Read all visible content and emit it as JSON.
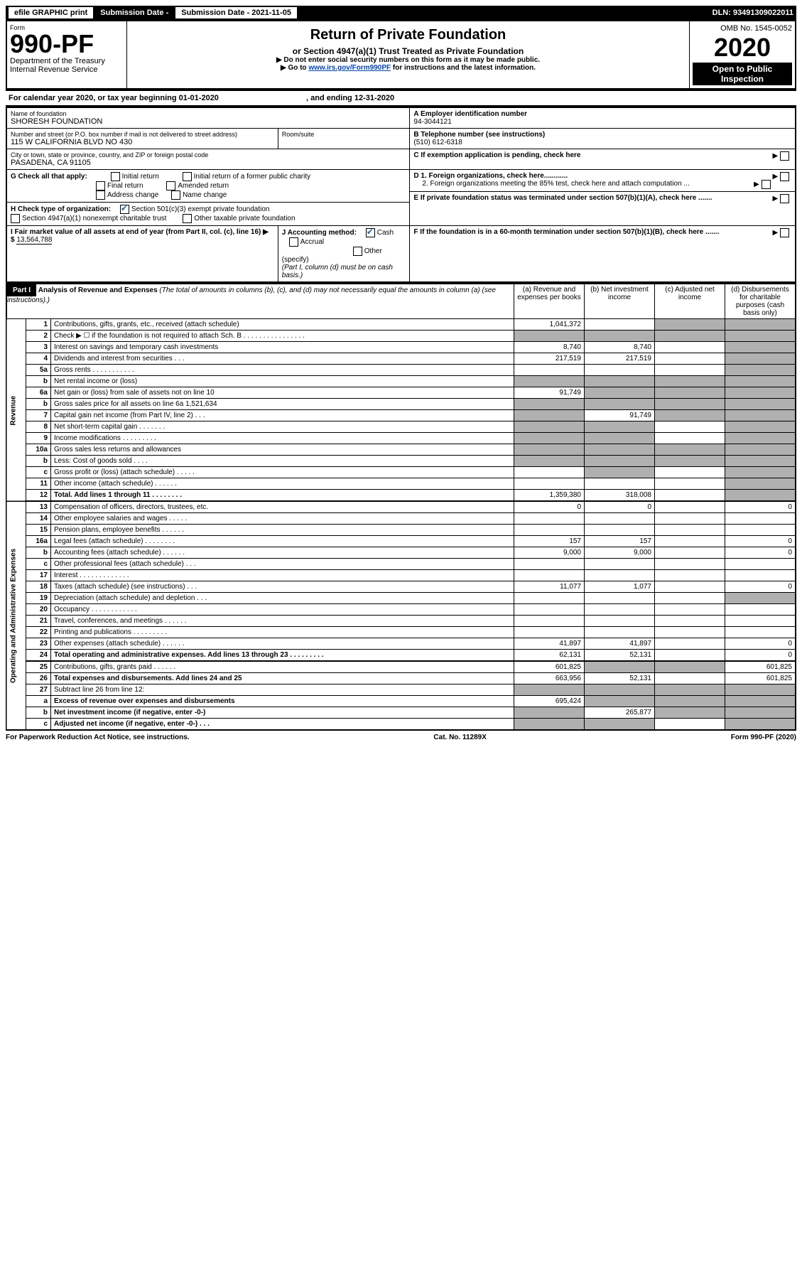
{
  "top_bar": {
    "efile": "efile GRAPHIC print",
    "submission_label": "Submission Date - 2021-11-05",
    "dln": "DLN: 93491309022011"
  },
  "header": {
    "form_label": "Form",
    "form_number": "990-PF",
    "dept": "Department of the Treasury",
    "irs": "Internal Revenue Service",
    "title": "Return of Private Foundation",
    "subtitle": "or Section 4947(a)(1) Trust Treated as Private Foundation",
    "note1": "▶ Do not enter social security numbers on this form as it may be made public.",
    "note2_prefix": "▶ Go to ",
    "note2_link": "www.irs.gov/Form990PF",
    "note2_suffix": " for instructions and the latest information.",
    "omb": "OMB No. 1545-0052",
    "year": "2020",
    "open": "Open to Public Inspection"
  },
  "cal_year": {
    "prefix": "For calendar year 2020, or tax year beginning ",
    "begin": "01-01-2020",
    "middle": " , and ending ",
    "end": "12-31-2020"
  },
  "info": {
    "name_label": "Name of foundation",
    "name": "SHORESH FOUNDATION",
    "ein_label": "A Employer identification number",
    "ein": "94-3044121",
    "addr_label": "Number and street (or P.O. box number if mail is not delivered to street address)",
    "addr": "115 W CALIFORNIA BLVD NO 430",
    "room_label": "Room/suite",
    "tel_label": "B Telephone number (see instructions)",
    "tel": "(510) 612-6318",
    "city_label": "City or town, state or province, country, and ZIP or foreign postal code",
    "city": "PASADENA, CA  91105",
    "c_label": "C If exemption application is pending, check here",
    "g_label": "G Check all that apply:",
    "g_initial": "Initial return",
    "g_initial_former": "Initial return of a former public charity",
    "g_final": "Final return",
    "g_amended": "Amended return",
    "g_addr": "Address change",
    "g_name": "Name change",
    "d1": "D 1. Foreign organizations, check here............",
    "d2": "2. Foreign organizations meeting the 85% test, check here and attach computation ...",
    "h_label": "H Check type of organization:",
    "h_501c3": "Section 501(c)(3) exempt private foundation",
    "h_4947": "Section 4947(a)(1) nonexempt charitable trust",
    "h_other": "Other taxable private foundation",
    "e_label": "E If private foundation status was terminated under section 507(b)(1)(A), check here .......",
    "i_label": "I Fair market value of all assets at end of year (from Part II, col. (c), line 16) ▶ $",
    "i_val": "13,564,788",
    "j_label": "J Accounting method:",
    "j_cash": "Cash",
    "j_accrual": "Accrual",
    "j_other": "Other (specify)",
    "j_note": "(Part I, column (d) must be on cash basis.)",
    "f_label": "F If the foundation is in a 60-month termination under section 507(b)(1)(B), check here ......."
  },
  "part1": {
    "label": "Part I",
    "title": "Analysis of Revenue and Expenses",
    "title_note": " (The total of amounts in columns (b), (c), and (d) may not necessarily equal the amounts in column (a) (see instructions).)",
    "col_a": "(a) Revenue and expenses per books",
    "col_b": "(b) Net investment income",
    "col_c": "(c) Adjusted net income",
    "col_d": "(d) Disbursements for charitable purposes (cash basis only)",
    "side_revenue": "Revenue",
    "side_expenses": "Operating and Administrative Expenses"
  },
  "rows": [
    {
      "n": "1",
      "d": "Contributions, gifts, grants, etc., received (attach schedule)",
      "a": "1,041,372",
      "b": "",
      "c": "shaded",
      "dd": "shaded"
    },
    {
      "n": "2",
      "d": "Check ▶ ☐ if the foundation is not required to attach Sch. B  .  .  .  .  .  .  .  .  .  .  .  .  .  .  .  .",
      "a": "shaded",
      "b": "shaded",
      "c": "shaded",
      "dd": "shaded"
    },
    {
      "n": "3",
      "d": "Interest on savings and temporary cash investments",
      "a": "8,740",
      "b": "8,740",
      "c": "",
      "dd": "shaded"
    },
    {
      "n": "4",
      "d": "Dividends and interest from securities  .   .   .",
      "a": "217,519",
      "b": "217,519",
      "c": "",
      "dd": "shaded"
    },
    {
      "n": "5a",
      "d": "Gross rents   .   .   .   .   .   .   .   .   .   .   .",
      "a": "",
      "b": "",
      "c": "",
      "dd": "shaded"
    },
    {
      "n": "b",
      "d": "Net rental income or (loss)",
      "a": "shaded",
      "b": "shaded",
      "c": "shaded",
      "dd": "shaded"
    },
    {
      "n": "6a",
      "d": "Net gain or (loss) from sale of assets not on line 10",
      "a": "91,749",
      "b": "shaded",
      "c": "shaded",
      "dd": "shaded"
    },
    {
      "n": "b",
      "d": "Gross sales price for all assets on line 6a          1,521,634",
      "a": "shaded",
      "b": "shaded",
      "c": "shaded",
      "dd": "shaded"
    },
    {
      "n": "7",
      "d": "Capital gain net income (from Part IV, line 2)  .   .   .",
      "a": "shaded",
      "b": "91,749",
      "c": "shaded",
      "dd": "shaded"
    },
    {
      "n": "8",
      "d": "Net short-term capital gain  .   .   .   .   .   .   .",
      "a": "shaded",
      "b": "shaded",
      "c": "",
      "dd": "shaded"
    },
    {
      "n": "9",
      "d": "Income modifications  .   .   .   .   .   .   .   .   .",
      "a": "shaded",
      "b": "shaded",
      "c": "",
      "dd": "shaded"
    },
    {
      "n": "10a",
      "d": "Gross sales less returns and allowances",
      "a": "shaded",
      "b": "shaded",
      "c": "shaded",
      "dd": "shaded"
    },
    {
      "n": "b",
      "d": "Less: Cost of goods sold   .   .   .   .",
      "a": "shaded",
      "b": "shaded",
      "c": "shaded",
      "dd": "shaded"
    },
    {
      "n": "c",
      "d": "Gross profit or (loss) (attach schedule)   .   .   .   .   .",
      "a": "",
      "b": "shaded",
      "c": "",
      "dd": "shaded"
    },
    {
      "n": "11",
      "d": "Other income (attach schedule)   .   .   .   .   .   .",
      "a": "",
      "b": "",
      "c": "",
      "dd": "shaded"
    },
    {
      "n": "12",
      "d": "Total. Add lines 1 through 11  .   .   .   .   .   .   .   .",
      "a": "1,359,380",
      "b": "318,008",
      "c": "",
      "dd": "shaded",
      "bold": true
    },
    {
      "n": "13",
      "d": "Compensation of officers, directors, trustees, etc.",
      "a": "0",
      "b": "0",
      "c": "",
      "dd": "0"
    },
    {
      "n": "14",
      "d": "Other employee salaries and wages   .   .   .   .   .",
      "a": "",
      "b": "",
      "c": "",
      "dd": ""
    },
    {
      "n": "15",
      "d": "Pension plans, employee benefits  .   .   .   .   .   .",
      "a": "",
      "b": "",
      "c": "",
      "dd": ""
    },
    {
      "n": "16a",
      "d": "Legal fees (attach schedule)  .   .   .   .   .   .   .   .",
      "a": "157",
      "b": "157",
      "c": "",
      "dd": "0"
    },
    {
      "n": "b",
      "d": "Accounting fees (attach schedule)  .   .   .   .   .   .",
      "a": "9,000",
      "b": "9,000",
      "c": "",
      "dd": "0"
    },
    {
      "n": "c",
      "d": "Other professional fees (attach schedule)   .   .   .",
      "a": "",
      "b": "",
      "c": "",
      "dd": ""
    },
    {
      "n": "17",
      "d": "Interest  .   .   .   .   .   .   .   .   .   .   .   .   .",
      "a": "",
      "b": "",
      "c": "",
      "dd": ""
    },
    {
      "n": "18",
      "d": "Taxes (attach schedule) (see instructions)   .   .   .",
      "a": "11,077",
      "b": "1,077",
      "c": "",
      "dd": "0"
    },
    {
      "n": "19",
      "d": "Depreciation (attach schedule) and depletion   .   .   .",
      "a": "",
      "b": "",
      "c": "",
      "dd": "shaded"
    },
    {
      "n": "20",
      "d": "Occupancy  .   .   .   .   .   .   .   .   .   .   .   .",
      "a": "",
      "b": "",
      "c": "",
      "dd": ""
    },
    {
      "n": "21",
      "d": "Travel, conferences, and meetings  .   .   .   .   .   .",
      "a": "",
      "b": "",
      "c": "",
      "dd": ""
    },
    {
      "n": "22",
      "d": "Printing and publications  .   .   .   .   .   .   .   .   .",
      "a": "",
      "b": "",
      "c": "",
      "dd": ""
    },
    {
      "n": "23",
      "d": "Other expenses (attach schedule)  .   .   .   .   .   .",
      "a": "41,897",
      "b": "41,897",
      "c": "",
      "dd": "0"
    },
    {
      "n": "24",
      "d": "Total operating and administrative expenses. Add lines 13 through 23  .   .   .   .   .   .   .   .   .",
      "a": "62,131",
      "b": "52,131",
      "c": "",
      "dd": "0",
      "bold": true
    },
    {
      "n": "25",
      "d": "Contributions, gifts, grants paid   .   .   .   .   .   .",
      "a": "601,825",
      "b": "shaded",
      "c": "shaded",
      "dd": "601,825"
    },
    {
      "n": "26",
      "d": "Total expenses and disbursements. Add lines 24 and 25",
      "a": "663,956",
      "b": "52,131",
      "c": "",
      "dd": "601,825",
      "bold": true
    },
    {
      "n": "27",
      "d": "Subtract line 26 from line 12:",
      "a": "shaded",
      "b": "shaded",
      "c": "shaded",
      "dd": "shaded"
    },
    {
      "n": "a",
      "d": "Excess of revenue over expenses and disbursements",
      "a": "695,424",
      "b": "shaded",
      "c": "shaded",
      "dd": "shaded",
      "bold": true
    },
    {
      "n": "b",
      "d": "Net investment income (if negative, enter -0-)",
      "a": "shaded",
      "b": "265,877",
      "c": "shaded",
      "dd": "shaded",
      "bold": true
    },
    {
      "n": "c",
      "d": "Adjusted net income (if negative, enter -0-)  .   .   .",
      "a": "shaded",
      "b": "shaded",
      "c": "",
      "dd": "shaded",
      "bold": true
    }
  ],
  "footer": {
    "left": "For Paperwork Reduction Act Notice, see instructions.",
    "mid": "Cat. No. 11289X",
    "right": "Form 990-PF (2020)"
  }
}
